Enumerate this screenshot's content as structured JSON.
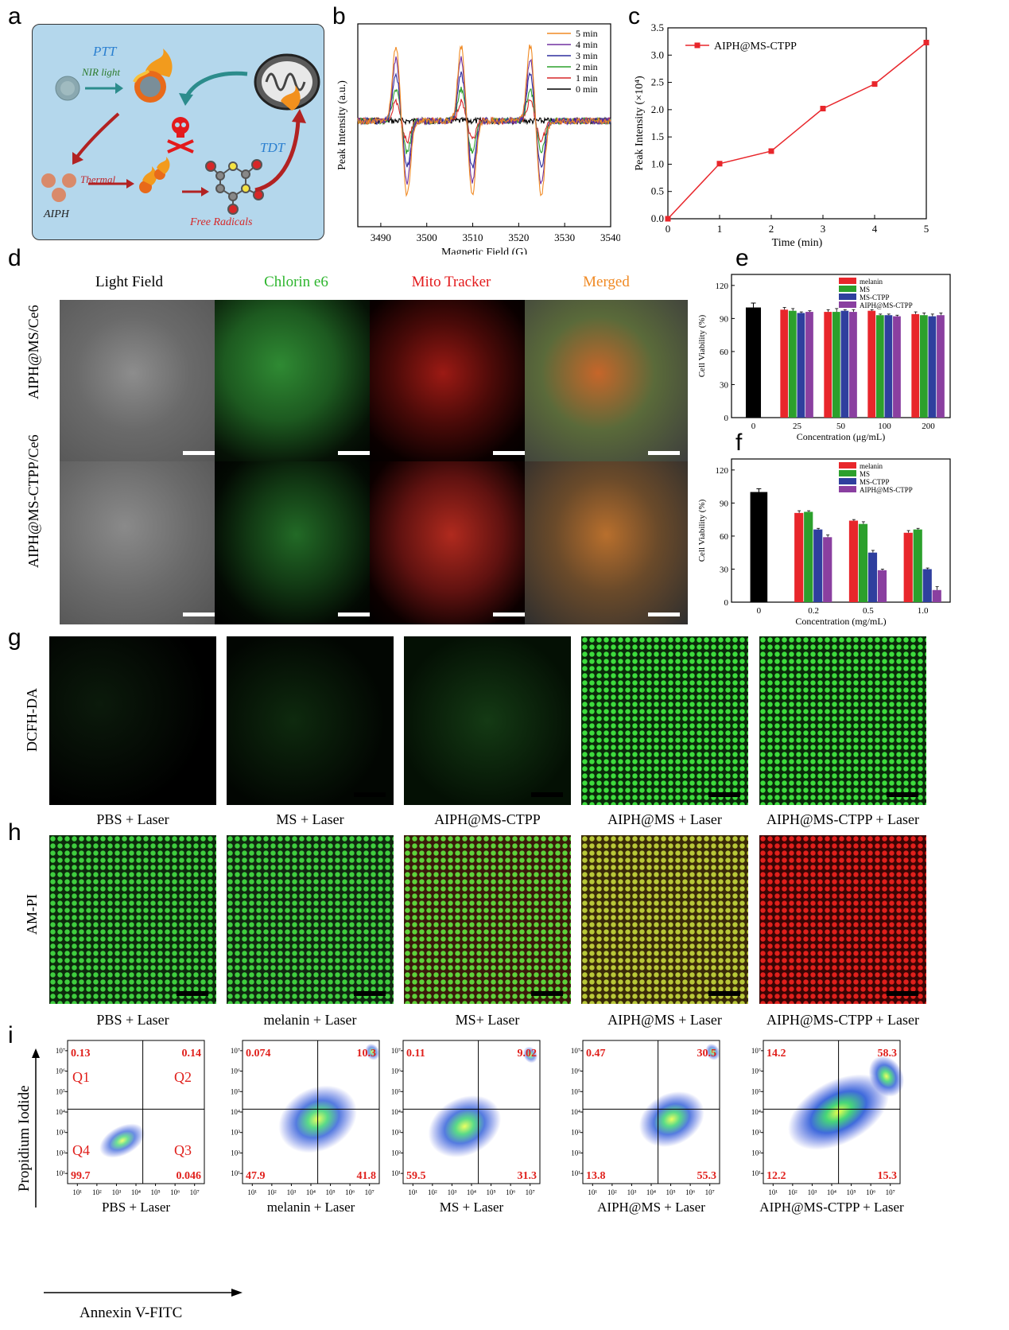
{
  "panels": {
    "a": {
      "label": "a",
      "texts": {
        "ptt": "PTT",
        "nir": "NIR light",
        "thermal": "Thermal",
        "aiph": "AIPH",
        "free_radicals": "Free Radicals",
        "tdt": "TDT"
      }
    },
    "b": {
      "label": "b"
    },
    "c": {
      "label": "c"
    },
    "d": {
      "label": "d",
      "columns": [
        "Light Field",
        "Chlorin e6",
        "Mito Tracker",
        "Merged"
      ],
      "rows": [
        "AIPH@MS/Ce6",
        "AIPH@MS-CTPP/Ce6"
      ]
    },
    "e": {
      "label": "e"
    },
    "f": {
      "label": "f"
    },
    "g": {
      "label": "g",
      "row_label": "DCFH-DA",
      "captions": [
        "PBS + Laser",
        "MS + Laser",
        "AIPH@MS-CTPP",
        "AIPH@MS + Laser",
        "AIPH@MS-CTPP + Laser"
      ]
    },
    "h": {
      "label": "h",
      "row_label": "AM-PI",
      "captions": [
        "PBS + Laser",
        "melanin + Laser",
        "MS+ Laser",
        "AIPH@MS + Laser",
        "AIPH@MS-CTPP + Laser"
      ]
    },
    "i": {
      "label": "i",
      "ylabel": "Propidium Iodide",
      "xlabel": "Annexin V-FITC",
      "quadrant_names": [
        "Q1",
        "Q2",
        "Q3",
        "Q4"
      ],
      "ticks": [
        "10¹",
        "10²",
        "10³",
        "10⁴",
        "10⁵",
        "10⁶",
        "10⁷"
      ],
      "plots": [
        {
          "caption": "PBS + Laser",
          "q1": "0.13",
          "q2": "0.14",
          "q3": "0.046",
          "q4": "99.7",
          "show_names": true
        },
        {
          "caption": "melanin + Laser",
          "q1": "0.074",
          "q2": "10.3",
          "q3": "41.8",
          "q4": "47.9",
          "show_names": false
        },
        {
          "caption": "MS + Laser",
          "q1": "0.11",
          "q2": "9.02",
          "q3": "31.3",
          "q4": "59.5",
          "show_names": false
        },
        {
          "caption": "AIPH@MS + Laser",
          "q1": "0.47",
          "q2": "30.5",
          "q3": "55.3",
          "q4": "13.8",
          "show_names": false
        },
        {
          "caption": "AIPH@MS-CTPP + Laser",
          "q1": "14.2",
          "q2": "58.3",
          "q3": "15.3",
          "q4": "12.2",
          "show_names": false
        }
      ]
    }
  },
  "chart_data": [
    {
      "panel": "b",
      "type": "line",
      "xlabel": "Magnetic Field (G)",
      "ylabel": "Peak Intensity (a.u.)",
      "xlim": [
        3485,
        3540
      ],
      "xticks": [
        3490,
        3500,
        3510,
        3520,
        3530,
        3540
      ],
      "line_centers": [
        3494.5,
        3508.7,
        3523.7
      ],
      "line_split": 2.4,
      "legend_position": "top-right",
      "series": [
        {
          "name": "5 min",
          "color": "#f08a24",
          "amplitude": 1.0
        },
        {
          "name": "4 min",
          "color": "#7030a0",
          "amplitude": 0.82
        },
        {
          "name": "3 min",
          "color": "#2e2e9e",
          "amplitude": 0.62
        },
        {
          "name": "2 min",
          "color": "#2ca02c",
          "amplitude": 0.42
        },
        {
          "name": "1 min",
          "color": "#d62728",
          "amplitude": 0.26
        },
        {
          "name": "0 min",
          "color": "#000000",
          "amplitude": 0.0
        }
      ]
    },
    {
      "panel": "c",
      "type": "line",
      "xlabel": "Time (min)",
      "ylabel": "Peak Intensity (×10⁴)",
      "xlim": [
        0,
        5
      ],
      "ylim": [
        0,
        3.5
      ],
      "xticks": [
        0,
        1,
        2,
        3,
        4,
        5
      ],
      "yticks": [
        0.0,
        0.5,
        1.0,
        1.5,
        2.0,
        2.5,
        3.0,
        3.5
      ],
      "series": [
        {
          "name": "AIPH@MS-CTPP",
          "color": "#e8262b",
          "x": [
            0,
            1,
            2,
            3,
            4,
            5
          ],
          "y": [
            0.0,
            1.01,
            1.24,
            2.02,
            2.47,
            3.23
          ]
        }
      ]
    },
    {
      "panel": "e",
      "type": "bar",
      "xlabel": "Concentration (μg/mL)",
      "ylabel": "Cell Viability (%)",
      "ylim": [
        0,
        130
      ],
      "yticks": [
        0,
        30,
        60,
        90,
        120
      ],
      "control": {
        "category": "0",
        "value": 100,
        "error": 4,
        "color": "#000000"
      },
      "categories": [
        "25",
        "50",
        "100",
        "200"
      ],
      "series": [
        {
          "name": "melanin",
          "color": "#e8262b",
          "values": [
            98,
            96,
            97,
            94
          ],
          "errors": [
            2,
            2,
            1,
            2
          ]
        },
        {
          "name": "MS",
          "color": "#2ca02c",
          "values": [
            97,
            96,
            93,
            93
          ],
          "errors": [
            2,
            3,
            1,
            2
          ]
        },
        {
          "name": "MS-CTPP",
          "color": "#2f3f9e",
          "values": [
            95,
            97,
            93,
            92
          ],
          "errors": [
            1,
            1,
            1,
            2
          ]
        },
        {
          "name": "AIPH@MS-CTPP",
          "color": "#8a3fa0",
          "values": [
            96,
            96,
            92,
            93
          ],
          "errors": [
            1,
            2,
            1,
            2
          ]
        }
      ]
    },
    {
      "panel": "f",
      "type": "bar",
      "xlabel": "Concentration (mg/mL)",
      "ylabel": "Cell Viability (%)",
      "ylim": [
        0,
        130
      ],
      "yticks": [
        0,
        30,
        60,
        90,
        120
      ],
      "control": {
        "category": "0",
        "value": 100,
        "error": 3,
        "color": "#000000"
      },
      "categories": [
        "0.2",
        "0.5",
        "1.0"
      ],
      "series": [
        {
          "name": "melanin",
          "color": "#e8262b",
          "values": [
            81,
            74,
            63
          ],
          "errors": [
            2,
            1,
            2
          ]
        },
        {
          "name": "MS",
          "color": "#2ca02c",
          "values": [
            82,
            71,
            66
          ],
          "errors": [
            1,
            2,
            1
          ]
        },
        {
          "name": "MS-CTPP",
          "color": "#2f3f9e",
          "values": [
            66,
            45,
            30
          ],
          "errors": [
            1,
            2,
            1
          ]
        },
        {
          "name": "AIPH@MS-CTPP",
          "color": "#8a3fa0",
          "values": [
            59,
            29,
            11
          ],
          "errors": [
            2,
            1,
            3
          ]
        }
      ]
    }
  ]
}
